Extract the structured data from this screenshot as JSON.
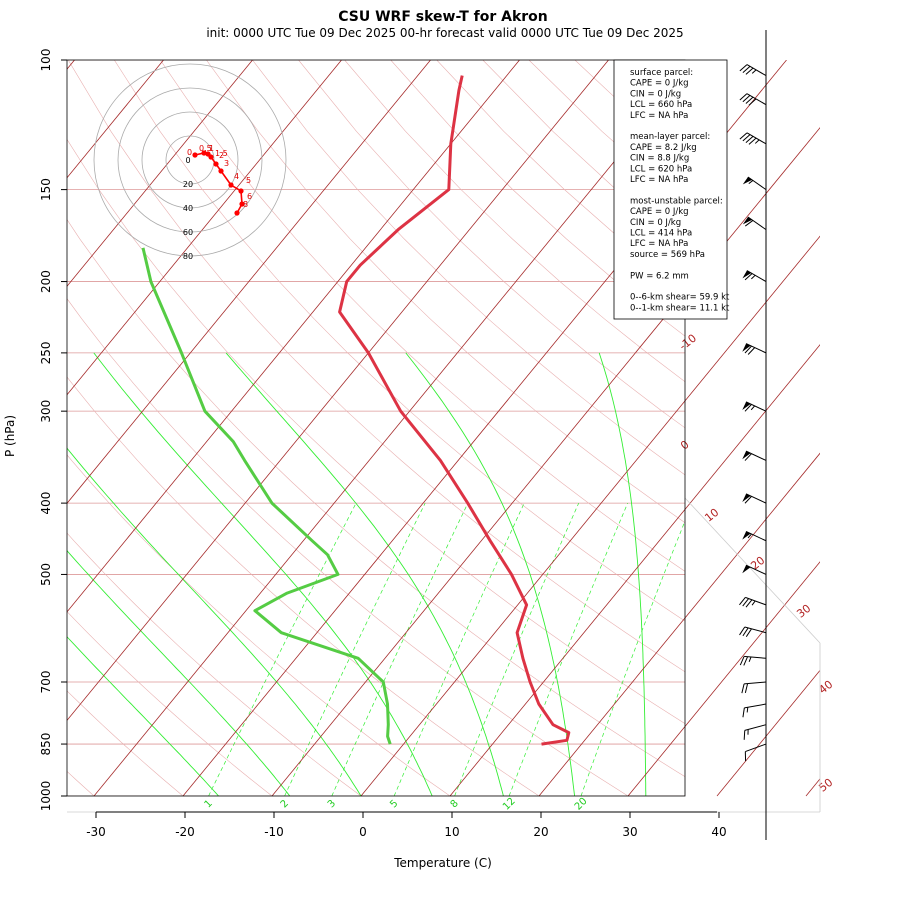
{
  "title": "CSU WRF skew-T for Akron",
  "subtitle": "init: 0000 UTC Tue 09 Dec 2025    00-hr forecast valid 0000 UTC Tue 09 Dec 2025",
  "colors": {
    "temp": "#dd3344",
    "dewpoint": "#55cc44",
    "isotherm": "#a52a2a",
    "moist_adiabat": "#33ee33",
    "mixing_ratio": "#33ee33",
    "pressure_line": "#dd9999"
  },
  "info_box": {
    "lines": [
      "surface parcel:",
      "CAPE = 0 J/kg",
      "CIN = 0 J/kg",
      "LCL = 660 hPa",
      "LFC = NA hPa",
      "",
      "mean-layer parcel:",
      "CAPE = 8.2 J/kg",
      "CIN = 8.8 J/kg",
      "LCL = 620 hPa",
      "LFC = NA hPa",
      "",
      "most-unstable parcel:",
      "CAPE = 0 J/kg",
      "CIN = 0 J/kg",
      "LCL = 414 hPa",
      "LFC = NA hPa",
      "source = 569 hPa",
      "",
      "PW =  6.2 mm",
      "",
      "0--6-km shear= 59.9 kt",
      "0--1-km shear= 11.1 kt"
    ]
  },
  "hodograph": {
    "ring_labels": [
      "0",
      "20",
      "40",
      "60",
      "80"
    ],
    "point_labels": [
      "0",
      "0.5",
      "1",
      "1.5",
      "2",
      "3",
      "4",
      "5",
      "6",
      "8"
    ]
  },
  "chart_data": {
    "type": "line",
    "title": "CSU WRF skew-T for Akron",
    "subtitle": "init: 0000 UTC Tue 09 Dec 2025    00-hr forecast valid 0000 UTC Tue 09 Dec 2025",
    "xlabel": "Temperature (C)",
    "ylabel": "P (hPa)",
    "x_ticks": [
      "-30",
      "-20",
      "-10",
      "0",
      "10",
      "20",
      "30",
      "40"
    ],
    "y_ticks": [
      "100",
      "150",
      "200",
      "250",
      "300",
      "400",
      "500",
      "700",
      "850",
      "1000"
    ],
    "x_range": [
      -33,
      45
    ],
    "y_range": [
      1000,
      100
    ],
    "y_scale": "log",
    "isotherm_labels": [
      "-10",
      "0",
      "10",
      "20",
      "30",
      "40",
      "50"
    ],
    "mixing_ratio_labels": [
      "1",
      "2",
      "3",
      "5",
      "8",
      "12",
      "20"
    ],
    "series": [
      {
        "name": "temperature",
        "points": [
          {
            "p": 850,
            "t": 15.5
          },
          {
            "p": 840,
            "t": 18.0
          },
          {
            "p": 820,
            "t": 17.5
          },
          {
            "p": 800,
            "t": 15.0
          },
          {
            "p": 750,
            "t": 11.5
          },
          {
            "p": 700,
            "t": 8.5
          },
          {
            "p": 650,
            "t": 5.5
          },
          {
            "p": 600,
            "t": 2.5
          },
          {
            "p": 550,
            "t": 1.0
          },
          {
            "p": 500,
            "t": -3.5
          },
          {
            "p": 450,
            "t": -9.0
          },
          {
            "p": 400,
            "t": -15.0
          },
          {
            "p": 350,
            "t": -22.0
          },
          {
            "p": 300,
            "t": -31.0
          },
          {
            "p": 250,
            "t": -40.0
          },
          {
            "p": 220,
            "t": -47.0
          },
          {
            "p": 200,
            "t": -49.0
          },
          {
            "p": 190,
            "t": -49.0
          },
          {
            "p": 170,
            "t": -48.0
          },
          {
            "p": 150,
            "t": -46.0
          },
          {
            "p": 130,
            "t": -50.0
          },
          {
            "p": 110,
            "t": -54.0
          },
          {
            "p": 105,
            "t": -55.0
          }
        ]
      },
      {
        "name": "dewpoint",
        "points": [
          {
            "p": 850,
            "t": -1.5
          },
          {
            "p": 830,
            "t": -2.5
          },
          {
            "p": 800,
            "t": -3.5
          },
          {
            "p": 750,
            "t": -5.5
          },
          {
            "p": 700,
            "t": -8.0
          },
          {
            "p": 650,
            "t": -13.0
          },
          {
            "p": 600,
            "t": -24.0
          },
          {
            "p": 560,
            "t": -29.0
          },
          {
            "p": 530,
            "t": -27.0
          },
          {
            "p": 500,
            "t": -23.0
          },
          {
            "p": 470,
            "t": -26.0
          },
          {
            "p": 450,
            "t": -29.0
          },
          {
            "p": 400,
            "t": -37.0
          },
          {
            "p": 350,
            "t": -44.0
          },
          {
            "p": 330,
            "t": -47.0
          },
          {
            "p": 300,
            "t": -53.0
          },
          {
            "p": 250,
            "t": -61.0
          },
          {
            "p": 200,
            "t": -71.0
          },
          {
            "p": 180,
            "t": -75.0
          }
        ]
      }
    ],
    "wind_barbs": [
      {
        "p": 850,
        "dir": 250,
        "speed": 10
      },
      {
        "p": 800,
        "dir": 255,
        "speed": 15
      },
      {
        "p": 750,
        "dir": 260,
        "speed": 15
      },
      {
        "p": 700,
        "dir": 265,
        "speed": 20
      },
      {
        "p": 650,
        "dir": 275,
        "speed": 25
      },
      {
        "p": 600,
        "dir": 285,
        "speed": 30
      },
      {
        "p": 550,
        "dir": 290,
        "speed": 35
      },
      {
        "p": 500,
        "dir": 295,
        "speed": 50
      },
      {
        "p": 450,
        "dir": 295,
        "speed": 55
      },
      {
        "p": 400,
        "dir": 295,
        "speed": 60
      },
      {
        "p": 350,
        "dir": 295,
        "speed": 60
      },
      {
        "p": 300,
        "dir": 295,
        "speed": 65
      },
      {
        "p": 250,
        "dir": 295,
        "speed": 70
      },
      {
        "p": 200,
        "dir": 300,
        "speed": 65
      },
      {
        "p": 170,
        "dir": 305,
        "speed": 60
      },
      {
        "p": 150,
        "dir": 305,
        "speed": 55
      },
      {
        "p": 130,
        "dir": 300,
        "speed": 45
      },
      {
        "p": 115,
        "dir": 300,
        "speed": 40
      },
      {
        "p": 105,
        "dir": 300,
        "speed": 35
      }
    ]
  }
}
